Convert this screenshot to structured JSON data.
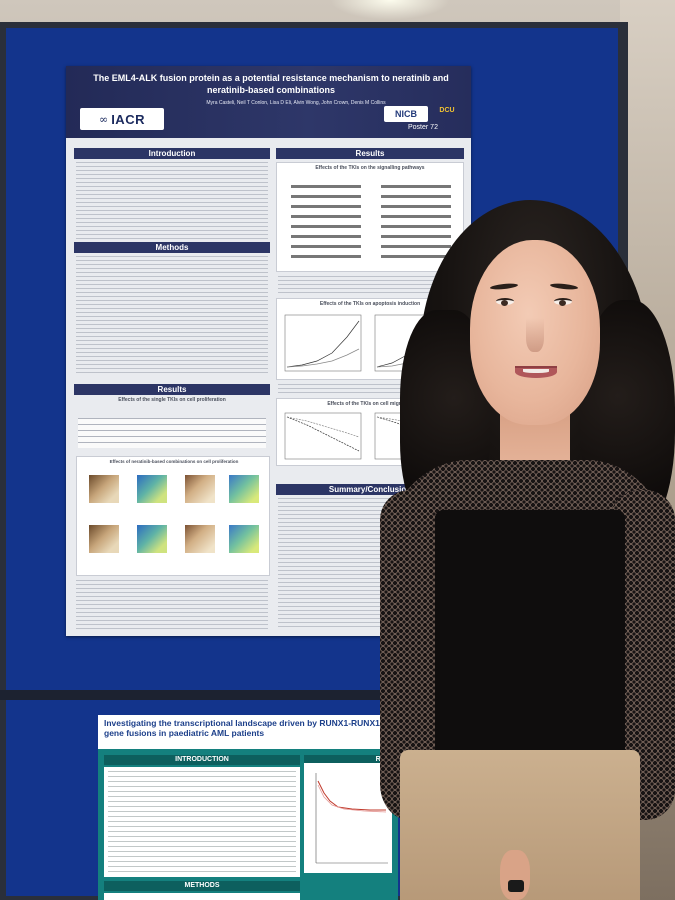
{
  "poster": {
    "title": "The EML4-ALK fusion protein as a potential resistance mechanism to neratinib and neratinib-based combinations",
    "authors": "Myra Casteli, Neil T Conlon, Lisa D Eli, Alvin Wong, John Crown, Denis M Collins",
    "logo_iacr": "IACR",
    "logo_nicb": "NICB",
    "logo_dcu": "DCU",
    "poster_number": "Poster 72",
    "sections": {
      "introduction": "Introduction",
      "methods": "Methods",
      "results_left": "Results",
      "results_right": "Results",
      "summary": "Summary/Conclusion"
    },
    "figures": {
      "signalling": "Effects of the TKIs on the signalling pathways",
      "proliferation_single": "Effects of the single TKIs on cell proliferation",
      "proliferation_combo": "Effects of neratinib-based combinations on cell proliferation",
      "apoptosis": "Effects of the TKIs on apoptosis induction",
      "migration": "Effects of the TKIs on cell migration"
    }
  },
  "poster2": {
    "title": "Investigating the transcriptional landscape driven by RUNX1-RUNX1T1 gene fusions in paediatric AML patients",
    "introduction": "INTRODUCTION",
    "methods": "METHODS",
    "results": "RES"
  },
  "colors": {
    "board_blue": "#13348c",
    "poster_navy": "#2c3565",
    "poster2_teal": "#14807e"
  }
}
